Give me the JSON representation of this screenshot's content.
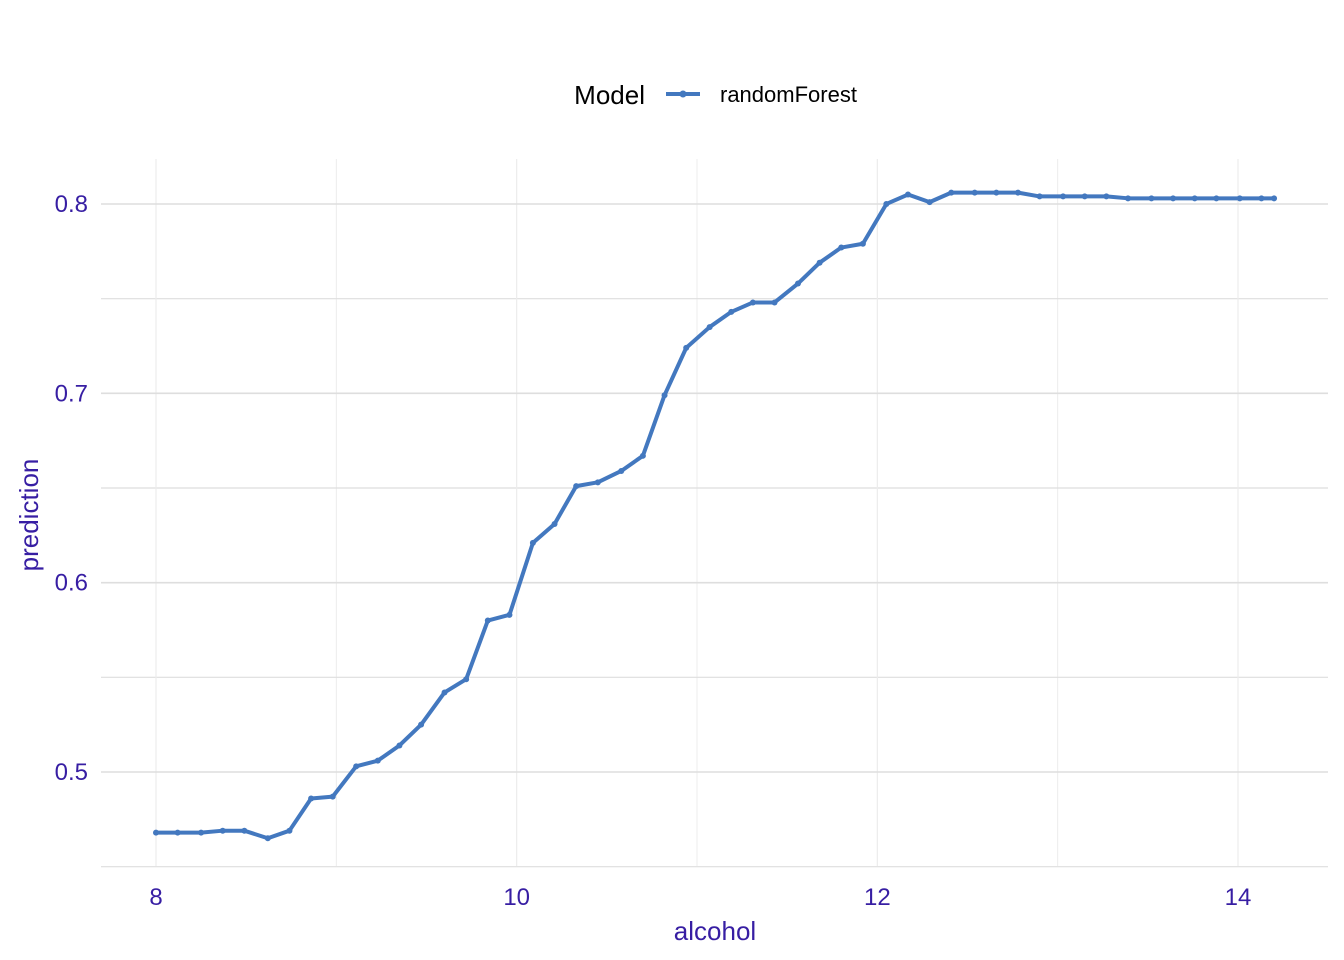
{
  "colors": {
    "axis_text": "#371ea3",
    "grid_major": "#dedede",
    "grid_minor": "#ececec",
    "series": "#4378bf"
  },
  "legend": {
    "title": "Model",
    "position": "top"
  },
  "chart_data": {
    "type": "line",
    "xlabel": "alcohol",
    "ylabel": "prediction",
    "xlim": [
      7.99,
      14.4
    ],
    "ylim": [
      0.45,
      0.825
    ],
    "xticks": [
      8,
      10,
      12,
      14
    ],
    "yticks": [
      0.5,
      0.6,
      0.7,
      0.8
    ],
    "xtick_labels": [
      "8",
      "10",
      "12",
      "14"
    ],
    "ytick_labels": [
      "0.5",
      "0.6",
      "0.7",
      "0.8"
    ],
    "grid": true,
    "series": [
      {
        "name": "randomForest",
        "x": [
          8.0,
          8.12,
          8.25,
          8.37,
          8.49,
          8.62,
          8.74,
          8.86,
          8.98,
          9.11,
          9.23,
          9.35,
          9.47,
          9.6,
          9.72,
          9.84,
          9.96,
          10.09,
          10.21,
          10.33,
          10.45,
          10.58,
          10.7,
          10.82,
          10.94,
          11.07,
          11.19,
          11.31,
          11.43,
          11.56,
          11.68,
          11.8,
          11.92,
          12.05,
          12.17,
          12.29,
          12.41,
          12.54,
          12.66,
          12.78,
          12.9,
          13.03,
          13.15,
          13.27,
          13.39,
          13.52,
          13.64,
          13.76,
          13.88,
          14.01,
          14.13,
          14.2
        ],
        "y": [
          0.468,
          0.468,
          0.468,
          0.469,
          0.469,
          0.465,
          0.469,
          0.486,
          0.487,
          0.503,
          0.506,
          0.514,
          0.525,
          0.542,
          0.549,
          0.58,
          0.583,
          0.621,
          0.631,
          0.651,
          0.653,
          0.659,
          0.667,
          0.699,
          0.724,
          0.735,
          0.743,
          0.748,
          0.748,
          0.758,
          0.769,
          0.777,
          0.779,
          0.8,
          0.805,
          0.801,
          0.806,
          0.806,
          0.806,
          0.806,
          0.804,
          0.804,
          0.804,
          0.804,
          0.803,
          0.803,
          0.803,
          0.803,
          0.803,
          0.803,
          0.803,
          0.803
        ]
      }
    ]
  }
}
